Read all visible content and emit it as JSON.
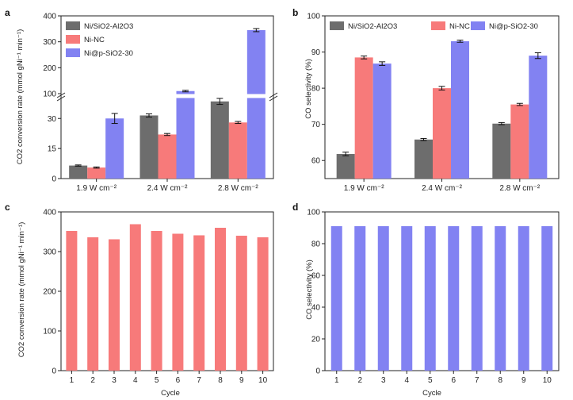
{
  "colors": {
    "gray": "#6d6d6d",
    "red": "#f77a7a",
    "blue": "#8282f2",
    "axis": "#222222"
  },
  "chart_data": [
    {
      "panel": "a",
      "type": "bar",
      "ylabel": "CO2 conversion rate (mmol gNi⁻¹ min⁻¹)",
      "xlabel": "",
      "categories": [
        "1.9 W cm⁻²",
        "2.4 W cm⁻²",
        "2.8 W cm⁻²"
      ],
      "series": [
        {
          "name": "Ni/SiO2-Al2O3",
          "color": "gray",
          "values": [
            6.5,
            31.5,
            38.5
          ],
          "errors": [
            0.3,
            0.8,
            1.5
          ]
        },
        {
          "name": "Ni-NC",
          "color": "red",
          "values": [
            5.5,
            22.0,
            28.0
          ],
          "errors": [
            0.3,
            0.5,
            0.5
          ]
        },
        {
          "name": "Ni@p-SiO2-30",
          "color": "blue",
          "values": [
            30.0,
            110,
            345
          ],
          "errors": [
            2.5,
            3,
            6
          ]
        }
      ],
      "axis_break": {
        "lower": [
          0,
          40
        ],
        "upper": [
          100,
          400
        ]
      },
      "yticks_lower": [
        "0",
        "15",
        "30"
      ],
      "yticks_upper": [
        "100",
        "200",
        "300",
        "400"
      ],
      "legend": "top-left"
    },
    {
      "panel": "b",
      "type": "bar",
      "ylabel": "CO selectivity (%)",
      "xlabel": "",
      "categories": [
        "1.9 W cm⁻²",
        "2.4 W cm⁻²",
        "2.8 W cm⁻²"
      ],
      "series": [
        {
          "name": "Ni/SiO2-Al2O3",
          "color": "gray",
          "values": [
            61.8,
            65.8,
            70.2
          ],
          "errors": [
            0.5,
            0.3,
            0.3
          ]
        },
        {
          "name": "Ni-NC",
          "color": "red",
          "values": [
            88.5,
            80.0,
            75.5
          ],
          "errors": [
            0.4,
            0.5,
            0.3
          ]
        },
        {
          "name": "Ni@p-SiO2-30",
          "color": "blue",
          "values": [
            86.8,
            93.0,
            89.0
          ],
          "errors": [
            0.5,
            0.3,
            0.8
          ]
        }
      ],
      "ylim": [
        55,
        100
      ],
      "yticks": [
        "60",
        "70",
        "80",
        "90",
        "100"
      ],
      "legend": "top"
    },
    {
      "panel": "c",
      "type": "bar",
      "ylabel": "CO2 conversion rate (mmol gNi⁻¹ min⁻¹)",
      "xlabel": "Cycle",
      "categories": [
        "1",
        "2",
        "3",
        "4",
        "5",
        "6",
        "7",
        "8",
        "9",
        "10"
      ],
      "values": [
        352,
        336,
        331,
        369,
        352,
        345,
        341,
        360,
        340,
        336
      ],
      "color": "red",
      "ylim": [
        0,
        400
      ],
      "yticks": [
        "0",
        "100",
        "200",
        "300",
        "400"
      ]
    },
    {
      "panel": "d",
      "type": "bar",
      "ylabel": "CO selectivity (%)",
      "xlabel": "Cycle",
      "categories": [
        "1",
        "2",
        "3",
        "4",
        "5",
        "6",
        "7",
        "8",
        "9",
        "10"
      ],
      "values": [
        91,
        91,
        91,
        91,
        91,
        91,
        91,
        91,
        91,
        91
      ],
      "color": "blue",
      "ylim": [
        0,
        100
      ],
      "yticks": [
        "0",
        "20",
        "40",
        "60",
        "80",
        "100"
      ]
    }
  ]
}
